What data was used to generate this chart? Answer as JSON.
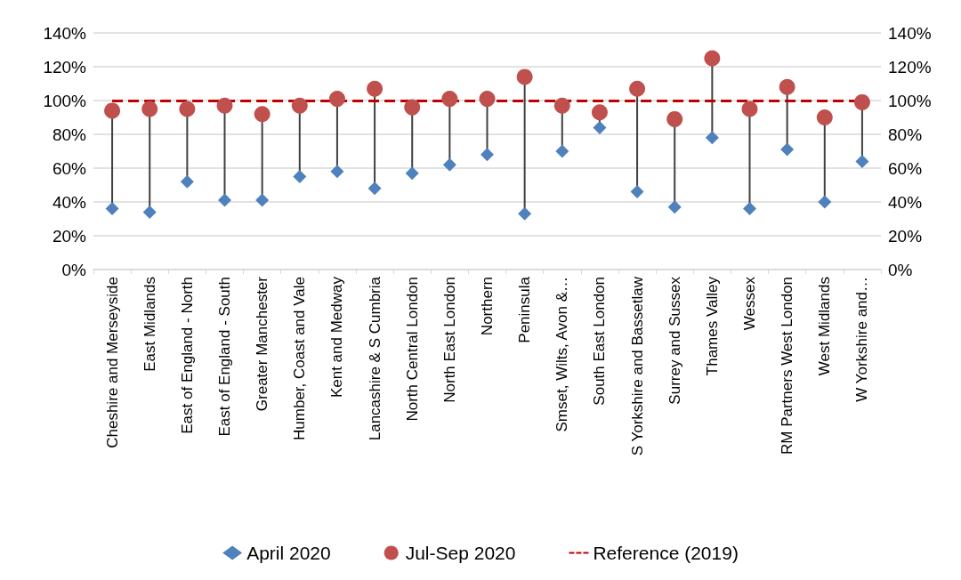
{
  "chart_data": {
    "type": "scatter",
    "categories": [
      "Cheshire and Merseyside",
      "East Midlands",
      "East of England - North",
      "East of England - South",
      "Greater Manchester",
      "Humber, Coast and Vale",
      "Kent and Medway",
      "Lancashire & S Cumbria",
      "North Central London",
      "North East London",
      "Northern",
      "Peninsula",
      "Smset, Wilts, Avon &…",
      "South East London",
      "S Yorkshire and Bassetlaw",
      "Surrey and Sussex",
      "Thames Valley",
      "Wessex",
      "RM Partners West London",
      "West Midlands",
      "W Yorkshire and…"
    ],
    "series": [
      {
        "name": "April 2020",
        "color": "#4f81bd",
        "marker": "diamond",
        "values": [
          36,
          34,
          52,
          41,
          41,
          55,
          58,
          48,
          57,
          62,
          68,
          33,
          70,
          84,
          46,
          37,
          78,
          36,
          71,
          40,
          64
        ]
      },
      {
        "name": "Jul-Sep 2020",
        "color": "#c0504d",
        "marker": "circle",
        "values": [
          94,
          95,
          95,
          97,
          92,
          97,
          101,
          107,
          96,
          101,
          101,
          114,
          97,
          93,
          107,
          89,
          125,
          95,
          108,
          90,
          99
        ]
      }
    ],
    "ref_lines": [
      {
        "axis": "y",
        "value": 100,
        "label": "Reference (2019)",
        "color": "#c00000",
        "line_style": "dashed"
      }
    ],
    "ylim": [
      0,
      140
    ],
    "yticks": [
      {
        "value": 0,
        "label": "0%"
      },
      {
        "value": 20,
        "label": "20%"
      },
      {
        "value": 40,
        "label": "40%"
      },
      {
        "value": 60,
        "label": "60%"
      },
      {
        "value": 80,
        "label": "80%"
      },
      {
        "value": 100,
        "label": "100%"
      },
      {
        "value": 120,
        "label": "120%"
      },
      {
        "value": 140,
        "label": "140%"
      }
    ],
    "y2lim": [
      0,
      140
    ],
    "y2ticks": [
      {
        "value": 0,
        "label": "0%"
      },
      {
        "value": 20,
        "label": "20%"
      },
      {
        "value": 40,
        "label": "40%"
      },
      {
        "value": 60,
        "label": "60%"
      },
      {
        "value": 80,
        "label": "80%"
      },
      {
        "value": 100,
        "label": "100%"
      },
      {
        "value": 120,
        "label": "120%"
      },
      {
        "value": 140,
        "label": "140%"
      }
    ],
    "grid": "y",
    "legend": "bottom"
  }
}
